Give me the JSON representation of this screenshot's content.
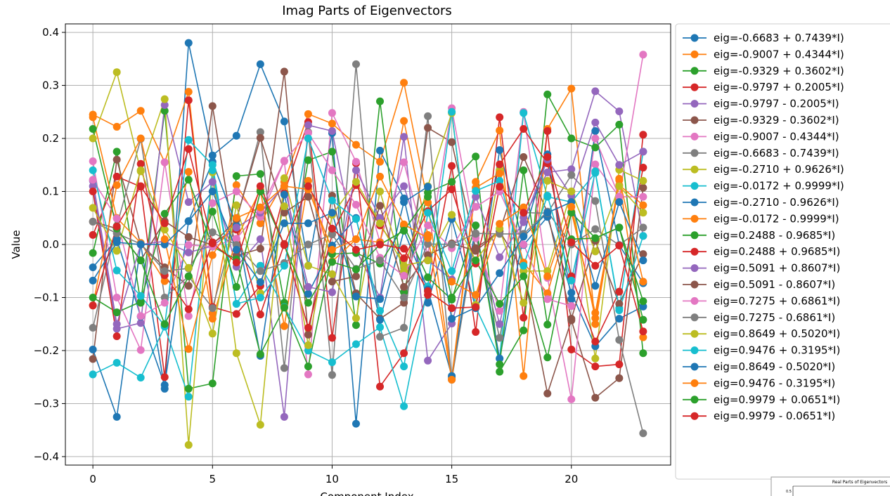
{
  "chart_data": {
    "type": "line",
    "title": "Imag Parts of Eigenvectors",
    "xlabel": "Component Index",
    "ylabel": "Value",
    "xlim": [
      -1.15,
      24.15
    ],
    "ylim": [
      -0.416,
      0.416
    ],
    "xticks": [
      0,
      5,
      10,
      15,
      20
    ],
    "xtick_labels": [
      "0",
      "5",
      "10",
      "15",
      "20"
    ],
    "yticks": [
      -0.4,
      -0.3,
      -0.2,
      -0.1,
      0.0,
      0.1,
      0.2,
      0.3,
      0.4
    ],
    "ytick_labels": [
      "−0.4",
      "−0.3",
      "−0.2",
      "−0.1",
      "0.0",
      "0.1",
      "0.2",
      "0.3",
      "0.4"
    ],
    "grid": true,
    "legend_position": "outside-right",
    "marker": "circle",
    "x": [
      0,
      1,
      2,
      3,
      4,
      5,
      6,
      7,
      8,
      9,
      10,
      11,
      12,
      13,
      14,
      15,
      16,
      17,
      18,
      19,
      20,
      21,
      22,
      23
    ],
    "series": [
      {
        "name": "eig=-0.6683 + 0.7439*I)",
        "color": "#1f77b4",
        "values": [
          -0.198,
          -0.325,
          0.0,
          -0.272,
          0.38,
          0.168,
          0.205,
          0.34,
          0.232,
          -0.04,
          0.21,
          -0.338,
          0.177,
          0.087,
          -0.11,
          0.048,
          -0.12,
          0.178,
          -0.001,
          0.052,
          -0.091,
          -0.192,
          -0.14,
          -0.117
        ]
      },
      {
        "name": "eig=-0.9007 + 0.4344*I)",
        "color": "#ff7f0e",
        "values": [
          0.245,
          0.222,
          0.252,
          0.155,
          0.288,
          -0.13,
          0.112,
          0.04,
          0.118,
          0.246,
          0.228,
          0.188,
          0.156,
          0.305,
          0.079,
          -0.252,
          0.118,
          0.215,
          -0.248,
          0.218,
          0.294,
          -0.15,
          0.121,
          -0.175
        ]
      },
      {
        "name": "eig=-0.9329 + 0.3602*I)",
        "color": "#2ca02c",
        "values": [
          -0.016,
          0.175,
          -0.11,
          0.252,
          -0.272,
          -0.262,
          0.129,
          0.133,
          -0.11,
          0.159,
          0.175,
          -0.152,
          0.27,
          -0.09,
          0.098,
          0.118,
          0.166,
          -0.24,
          -0.162,
          0.283,
          0.2,
          0.183,
          0.226,
          -0.205
        ]
      },
      {
        "name": "eig=-0.9797 + 0.2005*I)",
        "color": "#d62728",
        "values": [
          0.018,
          0.128,
          0.109,
          -0.25,
          0.272,
          -0.118,
          -0.131,
          -0.078,
          0.097,
          0.231,
          -0.176,
          0.153,
          -0.268,
          -0.205,
          -0.095,
          0.148,
          -0.165,
          0.24,
          -0.138,
          0.214,
          -0.198,
          -0.23,
          -0.226,
          0.207
        ]
      },
      {
        "name": "eig=-0.9797 - 0.2005*I)",
        "color": "#9467bd",
        "values": [
          0.11,
          -0.159,
          -0.148,
          0.263,
          0.08,
          0.118,
          -0.042,
          0.01,
          -0.325,
          0.225,
          0.214,
          -0.01,
          -0.1,
          0.203,
          -0.219,
          -0.149,
          0.018,
          -0.15,
          0.051,
          0.136,
          0.142,
          0.289,
          0.251,
          0.016
        ]
      },
      {
        "name": "eig=-0.9329 - 0.3602*I)",
        "color": "#8c564b",
        "values": [
          -0.216,
          0.16,
          0.0,
          -0.043,
          -0.078,
          0.261,
          -0.021,
          -0.008,
          0.326,
          -0.17,
          0.092,
          -0.092,
          -0.14,
          -0.11,
          0.22,
          0.193,
          -0.007,
          0.025,
          -0.05,
          -0.281,
          -0.143,
          -0.289,
          -0.252,
          0.107
        ]
      },
      {
        "name": "eig=-0.9007 - 0.4344*I)",
        "color": "#e377c2",
        "values": [
          0.157,
          -0.1,
          -0.199,
          0.155,
          -0.135,
          0.078,
          0.1,
          0.052,
          0.157,
          -0.245,
          0.248,
          0.156,
          0.005,
          0.155,
          -0.02,
          0.257,
          0.012,
          -0.125,
          0.25,
          -0.063,
          -0.292,
          0.151,
          0.09,
          0.358
        ]
      },
      {
        "name": "eig=-0.6683 - 0.7439*I)",
        "color": "#7f7f7f",
        "values": [
          -0.157,
          0.035,
          0.199,
          -0.1,
          -0.06,
          -0.12,
          0.046,
          0.212,
          -0.233,
          0.212,
          -0.246,
          0.34,
          -0.174,
          -0.157,
          0.242,
          -0.255,
          0.02,
          -0.176,
          0.06,
          0.059,
          0.131,
          0.082,
          -0.18,
          -0.356
        ]
      },
      {
        "name": "eig=-0.2710 + 0.9626*I)",
        "color": "#bcbd22",
        "values": [
          0.2,
          0.325,
          0.138,
          0.274,
          -0.378,
          0.136,
          -0.205,
          -0.34,
          0.125,
          -0.04,
          -0.056,
          -0.139,
          0.1,
          -0.05,
          0.11,
          0.248,
          -0.114,
          0.14,
          -0.05,
          -0.05,
          0.1,
          -0.215,
          0.141,
          0.12
        ]
      },
      {
        "name": "eig=-0.0172 + 0.9999*I)",
        "color": "#17becf",
        "values": [
          -0.245,
          -0.223,
          -0.251,
          -0.155,
          -0.287,
          0.14,
          -0.112,
          -0.04,
          -0.118,
          -0.2,
          -0.222,
          -0.188,
          -0.156,
          -0.305,
          -0.079,
          0.25,
          -0.118,
          -0.215,
          0.248,
          0.09,
          0.08,
          0.135,
          -0.12,
          0.175
        ]
      },
      {
        "name": "eig=-0.2710 - 0.9626*I)",
        "color": "#1f77b4",
        "values": [
          -0.043,
          0.01,
          -0.136,
          -0.265,
          0.044,
          0.156,
          0.036,
          -0.21,
          0.094,
          -0.093,
          -0.002,
          0.05,
          -0.142,
          0.026,
          -0.085,
          -0.248,
          0.036,
          -0.215,
          0.017,
          0.17,
          -0.103,
          0.214,
          -0.001,
          -0.073
        ]
      },
      {
        "name": "eig=-0.0172 - 0.9999*I)",
        "color": "#ff7f0e",
        "values": [
          0.24,
          0.05,
          0.003,
          -0.069,
          0.137,
          -0.14,
          0.01,
          0.103,
          -0.154,
          0.12,
          -0.032,
          0.01,
          0.004,
          0.233,
          0.018,
          -0.255,
          0.107,
          0.134,
          -0.034,
          -0.092,
          0.062,
          -0.129,
          0.112,
          0.074
        ]
      },
      {
        "name": "eig=0.2488 - 0.9685*I)",
        "color": "#2ca02c",
        "values": [
          -0.1,
          -0.128,
          -0.108,
          0.058,
          0.122,
          -0.004,
          -0.028,
          -0.207,
          -0.119,
          -0.23,
          -0.018,
          -0.016,
          -0.036,
          0.035,
          -0.062,
          -0.104,
          0.036,
          -0.226,
          0.14,
          -0.151,
          0.06,
          0.012,
          0.032,
          -0.142
        ]
      },
      {
        "name": "eig=0.2488 + 0.9685*I)",
        "color": "#d62728",
        "values": [
          0.1,
          -0.173,
          0.152,
          -0.058,
          -0.122,
          0.004,
          0.028,
          -0.132,
          0.001,
          -0.157,
          0.019,
          0.112,
          0.036,
          -0.026,
          0.063,
          0.104,
          -0.036,
          0.151,
          0.218,
          0.153,
          -0.06,
          -0.183,
          -0.089,
          0.145
        ]
      },
      {
        "name": "eig=0.5091 + 0.8607*I)",
        "color": "#9467bd",
        "values": [
          0.12,
          -0.15,
          0.0,
          0.006,
          -0.015,
          -0.003,
          0.032,
          0.06,
          0.11,
          -0.08,
          -0.09,
          0.14,
          0.05,
          0.11,
          -0.03,
          -0.066,
          0.09,
          -0.024,
          0.042,
          0.16,
          0.092,
          0.23,
          0.15,
          0.175
        ]
      },
      {
        "name": "eig=0.5091 - 0.8607*I)",
        "color": "#8c564b",
        "values": [
          0.043,
          0.03,
          -0.03,
          0.044,
          0.014,
          -0.001,
          0.048,
          0.201,
          0.06,
          0.09,
          -0.07,
          -0.06,
          0.073,
          -0.08,
          -0.02,
          0.002,
          -0.012,
          0.024,
          0.165,
          0.06,
          -0.14,
          0.007,
          -0.112,
          -0.018
        ]
      },
      {
        "name": "eig=0.7275 + 0.6861*I)",
        "color": "#e377c2",
        "values": [
          0.122,
          0.049,
          -0.135,
          -0.11,
          -0.001,
          -0.004,
          0.011,
          0.065,
          0.158,
          0.21,
          0.14,
          0.075,
          -0.025,
          -0.059,
          0.036,
          -0.007,
          0.071,
          0.1,
          0.0,
          -0.103,
          -0.116,
          0.2,
          0.09,
          0.09
        ]
      },
      {
        "name": "eig=0.7275 - 0.6861*I)",
        "color": "#7f7f7f",
        "values": [
          0.043,
          0.021,
          0.001,
          -0.05,
          -0.045,
          0.023,
          -0.001,
          -0.05,
          -0.035,
          0.0,
          0.019,
          -0.046,
          -0.03,
          -0.1,
          0.001,
          0.0,
          0.021,
          0.02,
          0.02,
          0.062,
          0.0,
          0.029,
          -0.001,
          0.032
        ]
      },
      {
        "name": "eig=0.8649 + 0.5020*I)",
        "color": "#bcbd22",
        "values": [
          0.069,
          -0.012,
          0.14,
          0.028,
          -0.044,
          -0.168,
          0.074,
          -0.092,
          0.072,
          -0.19,
          0.056,
          0.118,
          0.04,
          -0.04,
          -0.03,
          0.056,
          -0.03,
          0.03,
          -0.11,
          0.12,
          0.1,
          -0.013,
          0.11,
          0.06
        ]
      },
      {
        "name": "eig=0.9476 + 0.3195*I)",
        "color": "#17becf",
        "values": [
          0.14,
          -0.049,
          -0.097,
          -0.153,
          0.197,
          0.15,
          -0.112,
          -0.1,
          -0.04,
          0.2,
          0.083,
          0.048,
          -0.125,
          -0.23,
          0.06,
          -0.05,
          0.101,
          0.12,
          -0.04,
          0.092,
          -0.068,
          0.138,
          -0.124,
          0.016
        ]
      },
      {
        "name": "eig=0.8649 - 0.5020*I)",
        "color": "#1f77b4",
        "values": [
          -0.068,
          0.004,
          0.0,
          0.0,
          0.044,
          0.1,
          -0.01,
          -0.071,
          0.04,
          0.04,
          0.06,
          -0.098,
          -0.103,
          0.08,
          0.109,
          -0.14,
          -0.119,
          -0.054,
          0.015,
          0.06,
          0.08,
          -0.078,
          0.08,
          -0.03
        ]
      },
      {
        "name": "eig=0.9476 - 0.3195*I)",
        "color": "#ff7f0e",
        "values": [
          -0.115,
          0.112,
          0.2,
          0.01,
          -0.197,
          -0.02,
          0.05,
          0.07,
          0.11,
          0.104,
          -0.01,
          0.01,
          0.128,
          0.038,
          0.012,
          -0.07,
          -0.095,
          0.039,
          0.07,
          -0.06,
          0.071,
          -0.139,
          0.124,
          -0.07
        ]
      },
      {
        "name": "eig=0.9979 + 0.0651*I)",
        "color": "#2ca02c",
        "values": [
          0.218,
          0.03,
          -0.03,
          -0.15,
          -0.06,
          0.062,
          -0.08,
          0.1,
          -0.001,
          -0.11,
          -0.033,
          -0.047,
          0.0,
          0.026,
          0.09,
          -0.1,
          -0.03,
          -0.112,
          -0.06,
          -0.213,
          0.01,
          0.012,
          0.032,
          -0.107
        ]
      },
      {
        "name": "eig=0.9979 - 0.0651*I)",
        "color": "#d62728",
        "values": [
          -0.115,
          0.034,
          0.11,
          0.04,
          0.18,
          0.002,
          -0.034,
          0.11,
          -0.001,
          0.11,
          0.03,
          -0.01,
          0.0,
          -0.008,
          -0.088,
          -0.12,
          -0.118,
          0.109,
          0.06,
          0.165,
          0.004,
          -0.04,
          -0.002,
          -0.164
        ]
      }
    ]
  },
  "thumbnail": {
    "title": "Real Parts of Eigenvectors",
    "tick": "0.5"
  }
}
